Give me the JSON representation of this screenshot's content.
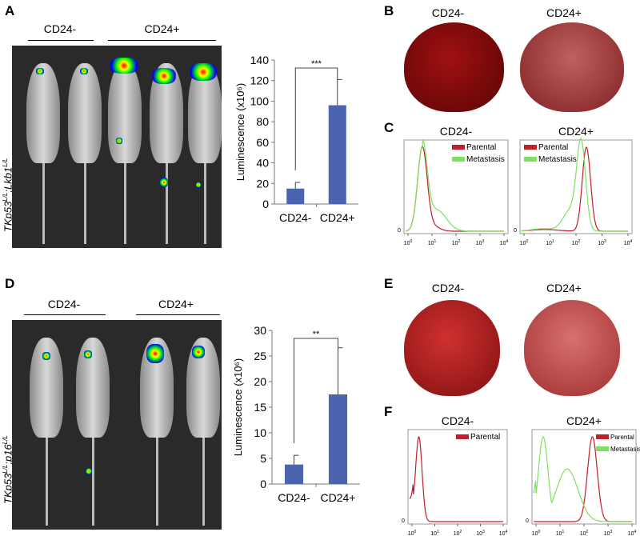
{
  "panels": {
    "A": {
      "letter": "A",
      "group_labels": [
        "CD24-",
        "CD24+"
      ],
      "genotype": "TKp53L/L;Lkb1L/L"
    },
    "B": {
      "letter": "B",
      "labels": [
        "CD24-",
        "CD24+"
      ]
    },
    "C": {
      "letter": "C",
      "titles": [
        "CD24-",
        "CD24+"
      ],
      "legend": [
        "Parental",
        "Metastasis"
      ]
    },
    "D": {
      "letter": "D",
      "group_labels": [
        "CD24-",
        "CD24+"
      ],
      "genotype": "TKp53L/L;p16L/L"
    },
    "E": {
      "letter": "E",
      "labels": [
        "CD24-",
        "CD24+"
      ]
    },
    "F": {
      "letter": "F",
      "titles": [
        "CD24-",
        "CD24+"
      ],
      "legend_left": [
        "Parental"
      ],
      "legend_right": [
        "Parental",
        "Metastasis"
      ]
    }
  },
  "colors": {
    "bar": "#4a64b0",
    "parental": "#c0202a",
    "metastasis": "#80e060"
  },
  "chart_data": [
    {
      "type": "bar",
      "panel": "A",
      "categories": [
        "CD24-",
        "CD24+"
      ],
      "values": [
        15,
        96
      ],
      "errors": [
        6,
        25
      ],
      "ylabel": "Luminescence (x10⁶)",
      "ylim": [
        0,
        140
      ],
      "yticks": [
        "0",
        "20",
        "40",
        "60",
        "80",
        "100",
        "120",
        "140"
      ],
      "significance": "***"
    },
    {
      "type": "bar",
      "panel": "D",
      "categories": [
        "CD24-",
        "CD24+"
      ],
      "values": [
        3.8,
        17.5
      ],
      "errors": [
        1.8,
        9.1
      ],
      "ylabel": "Luminescence (x10⁶)",
      "ylim": [
        0,
        30
      ],
      "yticks": [
        "0",
        "5",
        "10",
        "15",
        "20",
        "25",
        "30"
      ],
      "significance": "**"
    },
    {
      "type": "line",
      "panel": "C",
      "subplot": "CD24-",
      "xscale": "log",
      "xlim": [
        1,
        10000
      ],
      "y_tick": "0",
      "series": [
        {
          "name": "Parental",
          "peak": 4
        },
        {
          "name": "Metastasis",
          "peak": 4
        }
      ]
    },
    {
      "type": "line",
      "panel": "C",
      "subplot": "CD24+",
      "xscale": "log",
      "xlim": [
        1,
        10000
      ],
      "y_tick": "0",
      "series": [
        {
          "name": "Parental",
          "peak": 250
        },
        {
          "name": "Metastasis",
          "peak": 150
        }
      ]
    },
    {
      "type": "line",
      "panel": "F",
      "subplot": "CD24-",
      "xscale": "log",
      "xlim": [
        1,
        10000
      ],
      "y_tick": "0",
      "series": [
        {
          "name": "Parental",
          "peak": 2
        }
      ]
    },
    {
      "type": "line",
      "panel": "F",
      "subplot": "CD24+",
      "xscale": "log",
      "xlim": [
        1,
        10000
      ],
      "y_tick": "0",
      "series": [
        {
          "name": "Parental",
          "peak": 230
        },
        {
          "name": "Metastasis",
          "peak": 2
        }
      ]
    }
  ]
}
